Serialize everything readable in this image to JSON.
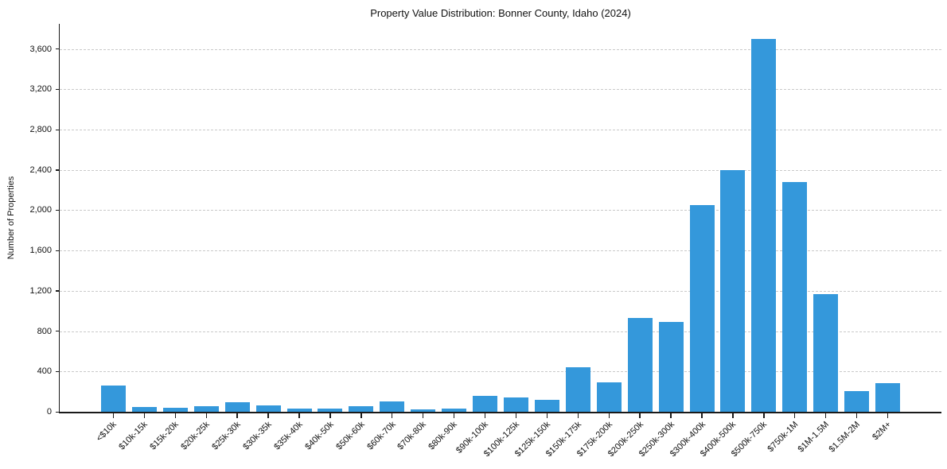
{
  "chart_data": {
    "type": "bar",
    "title": "Property Value Distribution: Bonner County, Idaho (2024)",
    "xlabel": "",
    "ylabel": "Number of Properties",
    "categories": [
      "<$10k",
      "$10k-15k",
      "$15k-20k",
      "$20k-25k",
      "$25k-30k",
      "$30k-35k",
      "$35k-40k",
      "$40k-50k",
      "$50k-60k",
      "$60k-70k",
      "$70k-80k",
      "$80k-90k",
      "$90k-100k",
      "$100k-125k",
      "$125k-150k",
      "$150k-175k",
      "$175k-200k",
      "$200k-250k",
      "$250k-300k",
      "$300k-400k",
      "$400k-500k",
      "$500k-750k",
      "$750k-1M",
      "$1M-1.5M",
      "$1.5M-2M",
      "$2M+"
    ],
    "values": [
      260,
      50,
      40,
      55,
      95,
      65,
      30,
      35,
      55,
      100,
      20,
      30,
      155,
      145,
      120,
      445,
      295,
      930,
      890,
      2050,
      2400,
      3700,
      2280,
      1170,
      205,
      285
    ],
    "yticks": [
      0,
      400,
      800,
      1200,
      1600,
      2000,
      2400,
      2800,
      3200,
      3600
    ],
    "ytick_labels": [
      "0",
      "400",
      "800",
      "1,200",
      "1,600",
      "2,000",
      "2,400",
      "2,800",
      "3,200",
      "3,600"
    ],
    "ylim": [
      0,
      3850
    ],
    "grid": "horizontal-dashed",
    "gridline_color": "#c9c9c9",
    "bar_color": "#3498db",
    "legend_position": "none"
  }
}
